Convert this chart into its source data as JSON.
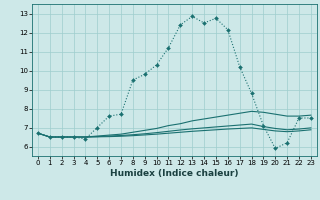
{
  "xlabel": "Humidex (Indice chaleur)",
  "background_color": "#cde8e8",
  "grid_color": "#9ecece",
  "line_color": "#1a7070",
  "xlim": [
    -0.5,
    23.5
  ],
  "ylim": [
    5.5,
    13.5
  ],
  "xticks": [
    0,
    1,
    2,
    3,
    4,
    5,
    6,
    7,
    8,
    9,
    10,
    11,
    12,
    13,
    14,
    15,
    16,
    17,
    18,
    19,
    20,
    21,
    22,
    23
  ],
  "yticks": [
    6,
    7,
    8,
    9,
    10,
    11,
    12,
    13
  ],
  "line1_x": [
    0,
    1,
    2,
    3,
    4,
    5,
    6,
    7,
    8,
    9,
    10,
    11,
    12,
    13,
    14,
    15,
    16,
    17,
    18,
    19,
    20,
    21,
    22,
    23
  ],
  "line1_y": [
    6.7,
    6.5,
    6.5,
    6.5,
    6.4,
    7.0,
    7.6,
    7.7,
    9.5,
    9.8,
    10.3,
    11.2,
    12.4,
    12.85,
    12.5,
    12.75,
    12.15,
    10.2,
    8.8,
    7.1,
    5.9,
    6.2,
    7.5,
    7.5
  ],
  "line2_x": [
    0,
    1,
    2,
    3,
    4,
    5,
    6,
    7,
    8,
    9,
    10,
    11,
    12,
    13,
    14,
    15,
    16,
    17,
    18,
    19,
    20,
    21,
    22,
    23
  ],
  "line2_y": [
    6.7,
    6.5,
    6.5,
    6.5,
    6.5,
    6.55,
    6.6,
    6.65,
    6.75,
    6.85,
    6.95,
    7.1,
    7.2,
    7.35,
    7.45,
    7.55,
    7.65,
    7.75,
    7.85,
    7.8,
    7.7,
    7.6,
    7.6,
    7.65
  ],
  "line3_x": [
    0,
    1,
    2,
    3,
    4,
    5,
    6,
    7,
    8,
    9,
    10,
    11,
    12,
    13,
    14,
    15,
    16,
    17,
    18,
    19,
    20,
    21,
    22,
    23
  ],
  "line3_y": [
    6.7,
    6.5,
    6.5,
    6.5,
    6.5,
    6.52,
    6.55,
    6.58,
    6.62,
    6.67,
    6.73,
    6.8,
    6.87,
    6.93,
    6.98,
    7.03,
    7.08,
    7.13,
    7.18,
    7.05,
    6.95,
    6.88,
    6.92,
    6.98
  ],
  "line4_x": [
    0,
    1,
    2,
    3,
    4,
    5,
    6,
    7,
    8,
    9,
    10,
    11,
    12,
    13,
    14,
    15,
    16,
    17,
    18,
    19,
    20,
    21,
    22,
    23
  ],
  "line4_y": [
    6.7,
    6.5,
    6.5,
    6.5,
    6.5,
    6.51,
    6.52,
    6.54,
    6.57,
    6.61,
    6.65,
    6.7,
    6.75,
    6.8,
    6.84,
    6.88,
    6.92,
    6.95,
    6.98,
    6.9,
    6.82,
    6.78,
    6.82,
    6.88
  ]
}
